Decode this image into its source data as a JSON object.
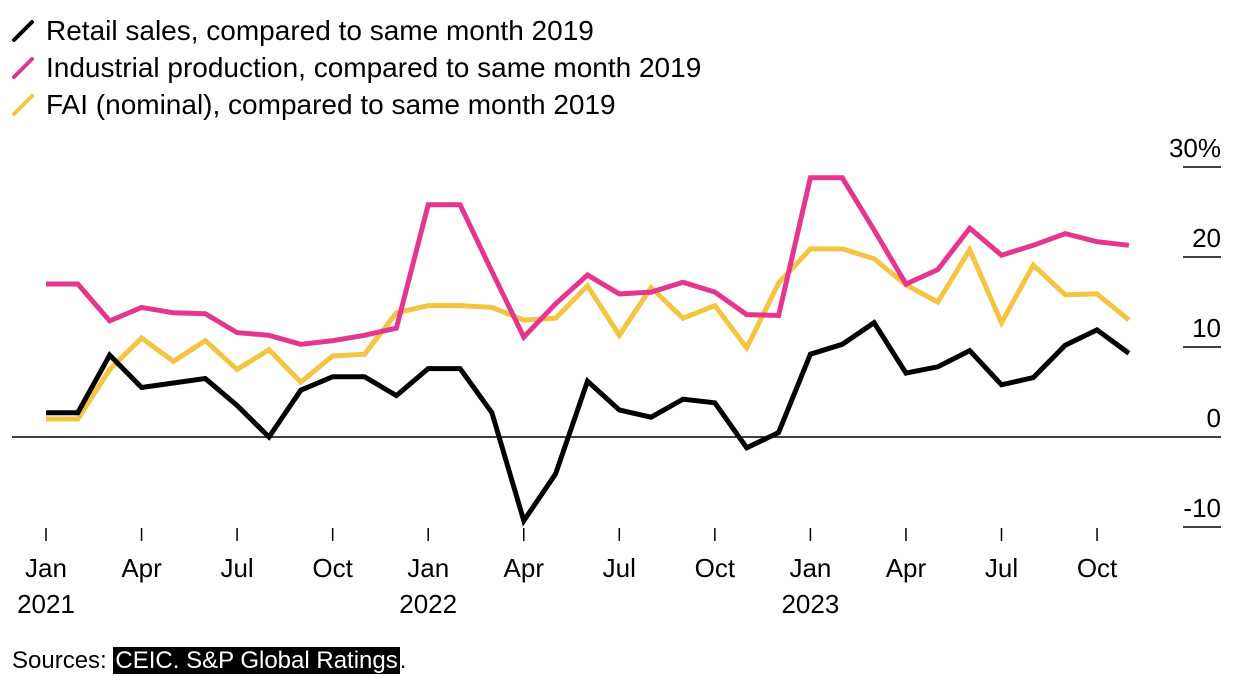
{
  "legend": [
    {
      "label": "Retail sales, compared to same month 2019",
      "color": "#000000"
    },
    {
      "label": "Industrial production, compared to same month 2019",
      "color": "#e5358e"
    },
    {
      "label": "FAI (nominal), compared to same month 2019",
      "color": "#f5c542"
    }
  ],
  "sources": {
    "prefix": "Sources: ",
    "highlight": "CEIC. S&P Global Ratings",
    "suffix": "."
  },
  "chart_data": {
    "type": "line",
    "x": [
      "2021-01",
      "2021-02",
      "2021-03",
      "2021-04",
      "2021-05",
      "2021-06",
      "2021-07",
      "2021-08",
      "2021-09",
      "2021-10",
      "2021-11",
      "2021-12",
      "2022-01",
      "2022-02",
      "2022-03",
      "2022-04",
      "2022-05",
      "2022-06",
      "2022-07",
      "2022-08",
      "2022-09",
      "2022-10",
      "2022-11",
      "2022-12",
      "2023-01",
      "2023-02",
      "2023-03",
      "2023-04",
      "2023-05",
      "2023-06",
      "2023-07",
      "2023-08",
      "2023-09",
      "2023-10",
      "2023-11"
    ],
    "x_ticks": [
      {
        "label": "Jan",
        "year": "2021"
      },
      {
        "label": "Apr",
        "year": ""
      },
      {
        "label": "Jul",
        "year": ""
      },
      {
        "label": "Oct",
        "year": ""
      },
      {
        "label": "Jan",
        "year": "2022"
      },
      {
        "label": "Apr",
        "year": ""
      },
      {
        "label": "Jul",
        "year": ""
      },
      {
        "label": "Oct",
        "year": ""
      },
      {
        "label": "Jan",
        "year": "2023"
      },
      {
        "label": "Apr",
        "year": ""
      },
      {
        "label": "Jul",
        "year": ""
      },
      {
        "label": "Oct",
        "year": ""
      }
    ],
    "y_ticks": [
      "30%",
      "20",
      "10",
      "0",
      "-10"
    ],
    "y_tick_values": [
      30,
      20,
      10,
      0,
      -10
    ],
    "ylim": [
      -10,
      30
    ],
    "series": [
      {
        "name": "Retail sales, compared to same month 2019",
        "color": "#000000",
        "values": [
          2.7,
          2.7,
          9.1,
          5.5,
          6.0,
          6.5,
          3.5,
          0.0,
          5.2,
          6.7,
          6.7,
          4.6,
          7.6,
          7.6,
          2.7,
          -9.3,
          -4.1,
          6.2,
          3.0,
          2.2,
          4.2,
          3.8,
          -1.2,
          0.5,
          9.2,
          10.3,
          12.7,
          7.1,
          7.8,
          9.6,
          5.8,
          6.6,
          10.2,
          11.9,
          9.3
        ]
      },
      {
        "name": "Industrial production, compared to same month 2019",
        "color": "#e5358e",
        "values": [
          17.0,
          17.0,
          12.9,
          14.4,
          13.8,
          13.7,
          11.6,
          11.3,
          10.3,
          10.7,
          11.3,
          12.1,
          25.8,
          25.8,
          18.4,
          11.1,
          14.8,
          18.0,
          15.9,
          16.1,
          17.2,
          16.1,
          13.6,
          13.5,
          28.8,
          28.8,
          23.0,
          17.0,
          18.6,
          23.2,
          20.2,
          21.3,
          22.6,
          21.7,
          21.3
        ]
      },
      {
        "name": "FAI (nominal), compared to same month 2019",
        "color": "#f5c542",
        "values": [
          2.0,
          2.0,
          7.5,
          11.0,
          8.4,
          10.7,
          7.5,
          9.7,
          6.1,
          9.0,
          9.2,
          13.8,
          14.6,
          14.6,
          14.4,
          13.0,
          13.2,
          16.8,
          11.3,
          16.6,
          13.2,
          14.6,
          9.9,
          17.1,
          20.9,
          20.9,
          19.8,
          16.9,
          15.0,
          20.8,
          12.7,
          19.1,
          15.8,
          15.9,
          13.0
        ]
      }
    ]
  }
}
